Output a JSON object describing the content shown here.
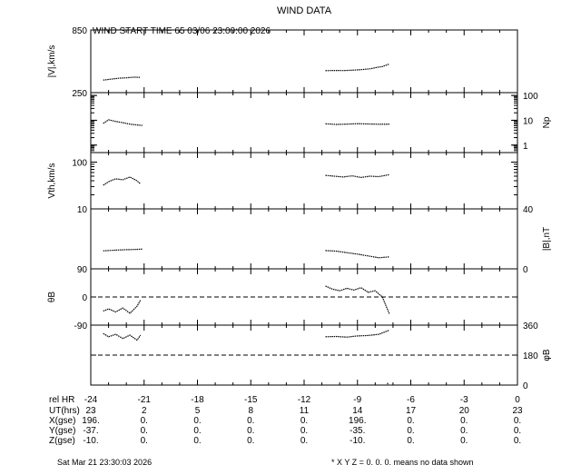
{
  "title": "WIND DATA",
  "start_time_label": "WIND START TIME 65 03/06 23:00:00 2026",
  "chart_data": {
    "type": "line",
    "x_axis": {
      "label": "rel HR",
      "ticks": [
        -24,
        -21,
        -18,
        -15,
        -12,
        -9,
        -6,
        -3,
        0
      ],
      "range": [
        -24,
        0
      ]
    },
    "panels": [
      {
        "id": "speed",
        "ylabel_left": "|V|,km/s",
        "ylabel_right": "",
        "range": [
          250,
          850
        ],
        "scale": "linear",
        "ticks_left": [
          {
            "v": 850,
            "t": "850"
          },
          {
            "v": 250,
            "t": "250"
          }
        ],
        "ticks_right": [],
        "series": [
          {
            "x": [
              -23.3,
              -22.8,
              -22.4,
              -22.0,
              -21.6,
              -21.2
            ],
            "y": [
              370,
              380,
              388,
              392,
              398,
              396
            ]
          },
          {
            "x": [
              -10.8,
              -10.3,
              -9.8,
              -9.3,
              -8.8,
              -8.3,
              -7.9,
              -7.6,
              -7.2
            ],
            "y": [
              460,
              462,
              461,
              465,
              470,
              478,
              492,
              500,
              525
            ]
          }
        ]
      },
      {
        "id": "density",
        "ylabel_left": "",
        "ylabel_right": "Np",
        "range": [
          0.5,
          130
        ],
        "scale": "log",
        "ticks_left": [],
        "ticks_right": [
          {
            "v": 100,
            "t": "100"
          },
          {
            "v": 10,
            "t": "10"
          },
          {
            "v": 1,
            "t": "1"
          }
        ],
        "series": [
          {
            "x": [
              -23.3,
              -23.0,
              -22.6,
              -22.2,
              -21.8,
              -21.4,
              -21.1
            ],
            "y": [
              7.5,
              10.5,
              9,
              8,
              7,
              6.5,
              6.2
            ]
          },
          {
            "x": [
              -10.8,
              -10.2,
              -9.6,
              -9.0,
              -8.4,
              -7.8,
              -7.2
            ],
            "y": [
              7.2,
              6.8,
              7,
              7.3,
              7.1,
              6.9,
              7
            ]
          }
        ]
      },
      {
        "id": "thermal",
        "ylabel_left": "Vth,km/s",
        "ylabel_right": "",
        "range": [
          10,
          160
        ],
        "scale": "log",
        "ticks_left": [
          {
            "v": 100,
            "t": "100"
          },
          {
            "v": 10,
            "t": "10"
          }
        ],
        "ticks_right": [],
        "series": [
          {
            "x": [
              -23.3,
              -23.0,
              -22.6,
              -22.2,
              -21.8,
              -21.4,
              -21.2
            ],
            "y": [
              32,
              38,
              44,
              42,
              48,
              40,
              34
            ]
          },
          {
            "x": [
              -10.8,
              -10.3,
              -9.8,
              -9.3,
              -8.8,
              -8.3,
              -7.8,
              -7.2
            ],
            "y": [
              52,
              50,
              48,
              51,
              47,
              50,
              49,
              54
            ]
          }
        ]
      },
      {
        "id": "bfield",
        "ylabel_left": "",
        "ylabel_right": "|B|,nT",
        "range": [
          0,
          40
        ],
        "scale": "linear",
        "ticks_left": [],
        "ticks_right": [
          {
            "v": 40,
            "t": "40"
          },
          {
            "v": 0,
            "t": "0"
          }
        ],
        "series": [
          {
            "x": [
              -23.3,
              -22.6,
              -22.0,
              -21.4,
              -21.1
            ],
            "y": [
              12,
              12.5,
              12.8,
              13,
              13.2
            ]
          },
          {
            "x": [
              -10.8,
              -10.2,
              -9.6,
              -9.0,
              -8.4,
              -7.8,
              -7.2
            ],
            "y": [
              12.2,
              11.8,
              10.8,
              9.8,
              8.6,
              7.4,
              8
            ]
          }
        ]
      },
      {
        "id": "theta",
        "ylabel_left": "θB",
        "ylabel_right": "",
        "range": [
          -90,
          90
        ],
        "scale": "linear",
        "dashed_zero": 0,
        "ticks_left": [
          {
            "v": 90,
            "t": "90"
          },
          {
            "v": 0,
            "t": "0"
          },
          {
            "v": -90,
            "t": "-90"
          }
        ],
        "ticks_right": [],
        "series": [
          {
            "x": [
              -23.3,
              -23.0,
              -22.6,
              -22.2,
              -21.8,
              -21.4,
              -21.2
            ],
            "y": [
              -45,
              -38,
              -48,
              -35,
              -52,
              -30,
              -10
            ]
          },
          {
            "x": [
              -10.8,
              -10.4,
              -10.0,
              -9.6,
              -9.2,
              -8.8,
              -8.4,
              -8.0,
              -7.6,
              -7.2
            ],
            "y": [
              35,
              25,
              20,
              28,
              22,
              30,
              15,
              20,
              0,
              -55
            ]
          }
        ]
      },
      {
        "id": "phi",
        "ylabel_left": "",
        "ylabel_right": "φB",
        "range": [
          0,
          360
        ],
        "scale": "linear",
        "dashed_zero": 180,
        "ticks_left": [],
        "ticks_right": [
          {
            "v": 360,
            "t": "360"
          },
          {
            "v": 180,
            "t": "180"
          },
          {
            "v": 0,
            "t": "0"
          }
        ],
        "series": [
          {
            "x": [
              -23.3,
              -23.0,
              -22.6,
              -22.2,
              -21.8,
              -21.4,
              -21.2
            ],
            "y": [
              310,
              290,
              305,
              280,
              300,
              270,
              300
            ]
          },
          {
            "x": [
              -10.8,
              -10.2,
              -9.6,
              -9.0,
              -8.4,
              -7.8,
              -7.2
            ],
            "y": [
              290,
              292,
              288,
              295,
              298,
              305,
              330
            ]
          },
          {
            "x": [
              -7.3,
              -7.3
            ],
            "y": [
              5,
              15
            ]
          }
        ]
      }
    ]
  },
  "ephemeris": [
    {
      "label": "UT(hrs)",
      "values": [
        "23",
        "2",
        "5",
        "8",
        "11",
        "14",
        "17",
        "20",
        "23"
      ]
    },
    {
      "label": "X(gse)",
      "values": [
        "196.",
        "0.",
        "0.",
        "0.",
        "0.",
        "196.",
        "0.",
        "0.",
        "0."
      ]
    },
    {
      "label": "Y(gse)",
      "values": [
        "-37.",
        "0.",
        "0.",
        "0.",
        "0.",
        "-35.",
        "0.",
        "0.",
        "0."
      ]
    },
    {
      "label": "Z(gse)",
      "values": [
        "-10.",
        "0.",
        "0.",
        "0.",
        "0.",
        "-10.",
        "0.",
        "0.",
        "0."
      ]
    }
  ],
  "footer_left": "Sat Mar 21 23:30:03 2026",
  "footer_right": "* X Y Z = 0. 0. 0. means no data shown"
}
